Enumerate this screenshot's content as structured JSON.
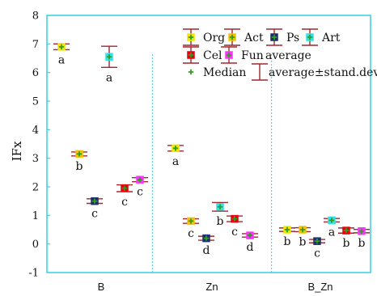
{
  "chart_data": {
    "type": "scatter",
    "ylabel": "IFx",
    "ylim": [
      -1,
      8
    ],
    "yticks": [
      -1,
      0,
      1,
      2,
      3,
      4,
      5,
      6,
      7,
      8
    ],
    "groups": [
      "B",
      "Zn",
      "B_Zn"
    ],
    "grid": false,
    "legend_position": "top-right",
    "legend": {
      "series": [
        {
          "name": "Org",
          "color": "#f2e600"
        },
        {
          "name": "Act",
          "color": "#f3c200"
        },
        {
          "name": "Ps",
          "color": "#1f2d6b"
        },
        {
          "name": "Art",
          "color": "#33e0e8"
        },
        {
          "name": "Cel",
          "color": "#e8000b"
        },
        {
          "name": "Fun",
          "color": "#ff33ff"
        }
      ],
      "average_label": "average",
      "median_label": "Median",
      "errorbar_label": "average±stand.dev.",
      "median_color": "#2e9e1f",
      "errorbar_color": "#a0262f"
    },
    "points": [
      {
        "group": "B",
        "series": "Org",
        "avg": 6.9,
        "sd": 0.1,
        "letter": "a"
      },
      {
        "group": "B",
        "series": "Act",
        "avg": 3.15,
        "sd": 0.07,
        "letter": "b"
      },
      {
        "group": "B",
        "series": "Ps",
        "avg": 1.5,
        "sd": 0.08,
        "letter": "c"
      },
      {
        "group": "B",
        "series": "Art",
        "avg": 6.55,
        "sd": 0.37,
        "letter": "a"
      },
      {
        "group": "B",
        "series": "Cel",
        "avg": 1.95,
        "sd": 0.12,
        "letter": "c"
      },
      {
        "group": "B",
        "series": "Fun",
        "avg": 2.25,
        "sd": 0.07,
        "letter": "c"
      },
      {
        "group": "Zn",
        "series": "Org",
        "avg": 3.35,
        "sd": 0.1,
        "letter": "a"
      },
      {
        "group": "Zn",
        "series": "Act",
        "avg": 0.8,
        "sd": 0.08,
        "letter": "c"
      },
      {
        "group": "Zn",
        "series": "Ps",
        "avg": 0.2,
        "sd": 0.07,
        "letter": "d"
      },
      {
        "group": "Zn",
        "series": "Art",
        "avg": 1.3,
        "sd": 0.15,
        "letter": "b"
      },
      {
        "group": "Zn",
        "series": "Cel",
        "avg": 0.88,
        "sd": 0.1,
        "letter": "c"
      },
      {
        "group": "Zn",
        "series": "Fun",
        "avg": 0.3,
        "sd": 0.06,
        "letter": "d"
      },
      {
        "group": "B_Zn",
        "series": "Org",
        "avg": 0.5,
        "sd": 0.06,
        "letter": "b"
      },
      {
        "group": "B_Zn",
        "series": "Act",
        "avg": 0.5,
        "sd": 0.07,
        "letter": "b"
      },
      {
        "group": "B_Zn",
        "series": "Ps",
        "avg": 0.1,
        "sd": 0.06,
        "letter": "c"
      },
      {
        "group": "B_Zn",
        "series": "Art",
        "avg": 0.83,
        "sd": 0.06,
        "letter": "a"
      },
      {
        "group": "B_Zn",
        "series": "Cel",
        "avg": 0.47,
        "sd": 0.09,
        "letter": "b"
      },
      {
        "group": "B_Zn",
        "series": "Fun",
        "avg": 0.45,
        "sd": 0.06,
        "letter": "b"
      }
    ]
  }
}
